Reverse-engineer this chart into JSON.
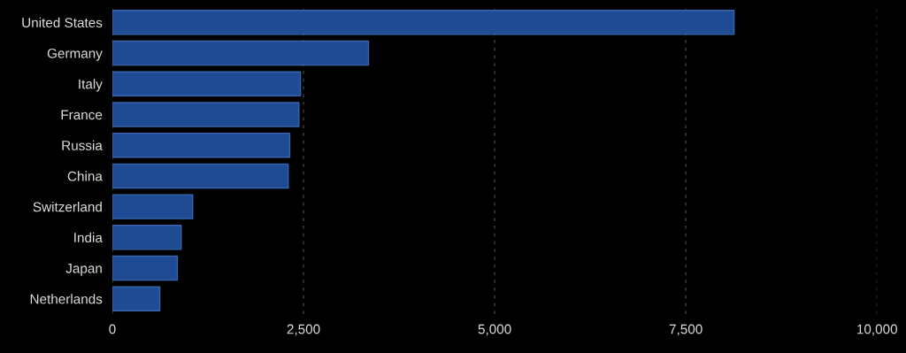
{
  "chart_data": {
    "type": "bar",
    "orientation": "horizontal",
    "categories": [
      "United States",
      "Germany",
      "Italy",
      "France",
      "Russia",
      "China",
      "Switzerland",
      "India",
      "Japan",
      "Netherlands"
    ],
    "values": [
      8130,
      3350,
      2460,
      2440,
      2320,
      2300,
      1050,
      900,
      850,
      620
    ],
    "color": "#1f4a94",
    "xlim": [
      0,
      10000
    ],
    "xticks": [
      0,
      {
        "value": 2500,
        "label": "2,500"
      },
      {
        "value": 5000,
        "label": "5,000"
      },
      {
        "value": 7500,
        "label": "7,500"
      },
      {
        "value": 10000,
        "label": "10,000"
      }
    ],
    "grid": "x"
  }
}
